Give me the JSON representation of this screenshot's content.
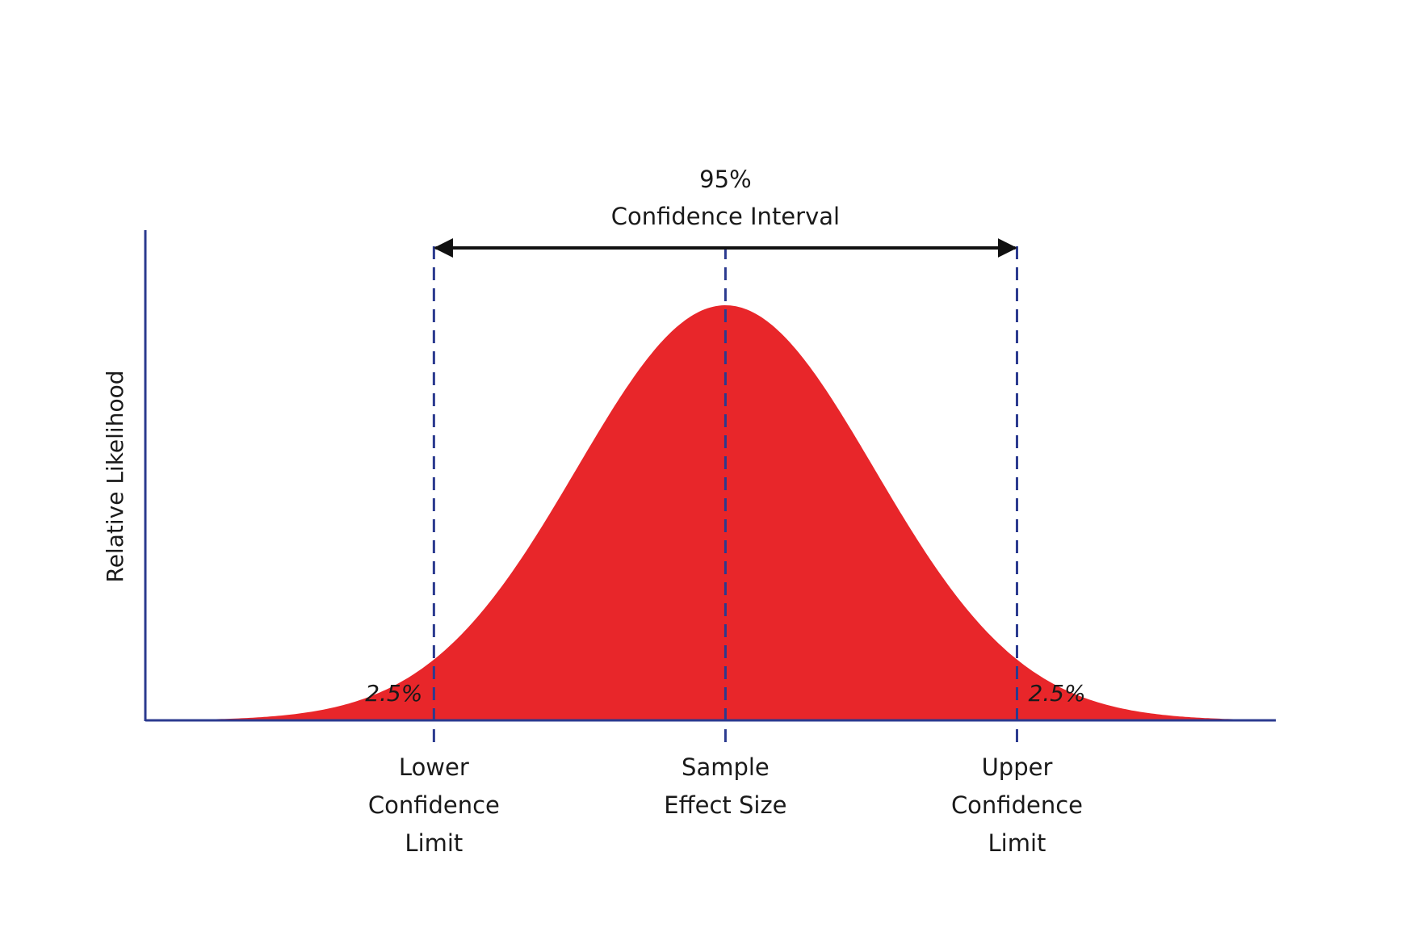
{
  "chart_data": {
    "type": "area",
    "title": "",
    "xlabel": "",
    "ylabel": "Relative Likelihood",
    "distribution": "normal",
    "mean": 0,
    "sd": 1,
    "xlim": [
      -3.9,
      3.7
    ],
    "confidence_level": "95%",
    "interval_label": [
      "95%",
      "Confidence Interval"
    ],
    "lower_limit": -1.96,
    "upper_limit": 1.96,
    "tail_labels": {
      "left": "2.5%",
      "right": "2.5%"
    },
    "markers": [
      {
        "x": -1.96,
        "label": [
          "Lower",
          "Confidence",
          "Limit"
        ]
      },
      {
        "x": 0,
        "label": [
          "Sample",
          "Effect Size"
        ]
      },
      {
        "x": 1.96,
        "label": [
          "Upper",
          "Confidence",
          "Limit"
        ]
      }
    ],
    "colors": {
      "fill": "#e8262a",
      "axis": "#2b3a8f",
      "marker": "#2b3a8f",
      "arrow": "#111111"
    },
    "grid": false,
    "legend": "none"
  }
}
